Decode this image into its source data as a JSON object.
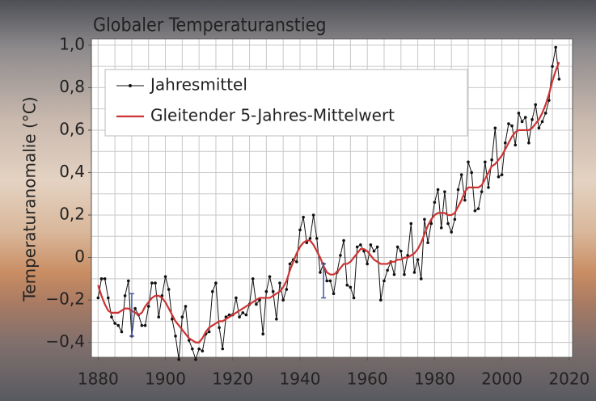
{
  "chart_data": {
    "type": "line",
    "title": "Globaler Temperaturanstieg",
    "ylabel": "Temperaturanomalie (°C)",
    "x": [
      1880,
      1881,
      1882,
      1883,
      1884,
      1885,
      1886,
      1887,
      1888,
      1889,
      1890,
      1891,
      1892,
      1893,
      1894,
      1895,
      1896,
      1897,
      1898,
      1899,
      1900,
      1901,
      1902,
      1903,
      1904,
      1905,
      1906,
      1907,
      1908,
      1909,
      1910,
      1911,
      1912,
      1913,
      1914,
      1915,
      1916,
      1917,
      1918,
      1919,
      1920,
      1921,
      1922,
      1923,
      1924,
      1925,
      1926,
      1927,
      1928,
      1929,
      1930,
      1931,
      1932,
      1933,
      1934,
      1935,
      1936,
      1937,
      1938,
      1939,
      1940,
      1941,
      1942,
      1943,
      1944,
      1945,
      1946,
      1947,
      1948,
      1949,
      1950,
      1951,
      1952,
      1953,
      1954,
      1955,
      1956,
      1957,
      1958,
      1959,
      1960,
      1961,
      1962,
      1963,
      1964,
      1965,
      1966,
      1967,
      1968,
      1969,
      1970,
      1971,
      1972,
      1973,
      1974,
      1975,
      1976,
      1977,
      1978,
      1979,
      1980,
      1981,
      1982,
      1983,
      1984,
      1985,
      1986,
      1987,
      1988,
      1989,
      1990,
      1991,
      1992,
      1993,
      1994,
      1995,
      1996,
      1997,
      1998,
      1999,
      2000,
      2001,
      2002,
      2003,
      2004,
      2005,
      2006,
      2007,
      2008,
      2009,
      2010,
      2011,
      2012,
      2013,
      2014,
      2015,
      2016,
      2017
    ],
    "series": [
      {
        "name": "Jahresmittel",
        "color": "#111111",
        "markers": true,
        "values": [
          -0.19,
          -0.1,
          -0.1,
          -0.19,
          -0.28,
          -0.31,
          -0.32,
          -0.35,
          -0.18,
          -0.11,
          -0.37,
          -0.24,
          -0.27,
          -0.32,
          -0.32,
          -0.23,
          -0.12,
          -0.12,
          -0.28,
          -0.18,
          -0.09,
          -0.15,
          -0.29,
          -0.37,
          -0.48,
          -0.28,
          -0.23,
          -0.39,
          -0.43,
          -0.48,
          -0.43,
          -0.44,
          -0.36,
          -0.35,
          -0.16,
          -0.12,
          -0.33,
          -0.43,
          -0.28,
          -0.27,
          -0.27,
          -0.19,
          -0.28,
          -0.26,
          -0.27,
          -0.22,
          -0.1,
          -0.22,
          -0.2,
          -0.36,
          -0.16,
          -0.09,
          -0.16,
          -0.29,
          -0.12,
          -0.2,
          -0.15,
          -0.03,
          -0.01,
          -0.02,
          0.13,
          0.19,
          0.07,
          0.09,
          0.2,
          0.09,
          -0.07,
          -0.03,
          -0.11,
          -0.11,
          -0.17,
          -0.07,
          0.01,
          0.08,
          -0.13,
          -0.14,
          -0.19,
          0.05,
          0.06,
          0.03,
          -0.03,
          0.06,
          0.03,
          0.05,
          -0.2,
          -0.11,
          -0.06,
          -0.02,
          -0.08,
          0.05,
          0.03,
          -0.08,
          0.01,
          0.16,
          -0.07,
          -0.01,
          -0.1,
          0.18,
          0.07,
          0.16,
          0.26,
          0.32,
          0.14,
          0.31,
          0.16,
          0.12,
          0.18,
          0.32,
          0.39,
          0.27,
          0.45,
          0.4,
          0.22,
          0.23,
          0.31,
          0.45,
          0.33,
          0.46,
          0.61,
          0.38,
          0.39,
          0.54,
          0.63,
          0.62,
          0.53,
          0.68,
          0.64,
          0.66,
          0.54,
          0.65,
          0.72,
          0.61,
          0.64,
          0.68,
          0.74,
          0.9,
          0.99,
          0.84
        ]
      },
      {
        "name": "Gleitender 5-Jahres-Mittelwert",
        "color": "#cc3333",
        "markers": false,
        "values": [
          -0.13,
          -0.18,
          -0.22,
          -0.25,
          -0.26,
          -0.26,
          -0.26,
          -0.25,
          -0.24,
          -0.24,
          -0.25,
          -0.26,
          -0.27,
          -0.26,
          -0.23,
          -0.21,
          -0.19,
          -0.18,
          -0.18,
          -0.19,
          -0.21,
          -0.24,
          -0.27,
          -0.3,
          -0.32,
          -0.34,
          -0.36,
          -0.38,
          -0.39,
          -0.4,
          -0.4,
          -0.38,
          -0.35,
          -0.33,
          -0.32,
          -0.31,
          -0.3,
          -0.3,
          -0.29,
          -0.28,
          -0.27,
          -0.26,
          -0.25,
          -0.24,
          -0.23,
          -0.22,
          -0.21,
          -0.2,
          -0.19,
          -0.19,
          -0.19,
          -0.19,
          -0.18,
          -0.17,
          -0.16,
          -0.14,
          -0.11,
          -0.06,
          -0.02,
          0.02,
          0.05,
          0.07,
          0.08,
          0.08,
          0.06,
          0.03,
          0.0,
          -0.04,
          -0.07,
          -0.08,
          -0.08,
          -0.07,
          -0.05,
          -0.03,
          -0.03,
          -0.02,
          0.0,
          0.02,
          0.04,
          0.04,
          0.03,
          0.01,
          -0.01,
          -0.02,
          -0.03,
          -0.03,
          -0.03,
          -0.02,
          -0.02,
          -0.01,
          -0.01,
          0.0,
          0.0,
          0.01,
          0.02,
          0.04,
          0.07,
          0.11,
          0.15,
          0.18,
          0.2,
          0.21,
          0.21,
          0.21,
          0.2,
          0.2,
          0.21,
          0.24,
          0.27,
          0.31,
          0.33,
          0.33,
          0.33,
          0.33,
          0.34,
          0.37,
          0.4,
          0.43,
          0.44,
          0.46,
          0.48,
          0.51,
          0.54,
          0.57,
          0.59,
          0.6,
          0.6,
          0.6,
          0.6,
          0.61,
          0.63,
          0.65,
          0.68,
          0.72,
          0.77,
          0.83,
          0.88,
          0.92
        ]
      }
    ],
    "error_bars": [
      {
        "x": 1890,
        "low": -0.37,
        "high": -0.17
      },
      {
        "x": 1947,
        "low": -0.19,
        "high": -0.03
      }
    ],
    "error_bar_color": "#4455aa",
    "xlim": [
      1878,
      2021
    ],
    "ylim": [
      -0.47,
      1.03
    ],
    "xticks": [
      1880,
      1900,
      1920,
      1940,
      1960,
      1980,
      2000,
      2020
    ],
    "yticks": [
      {
        "value": 1.0,
        "label": "1,0"
      },
      {
        "value": 0.8,
        "label": "0,8"
      },
      {
        "value": 0.6,
        "label": "0,6"
      },
      {
        "value": 0.4,
        "label": "0,4"
      },
      {
        "value": 0.2,
        "label": "0,2"
      },
      0,
      {
        "value": -0.2,
        "label": "−0,2"
      },
      {
        "value": -0.4,
        "label": "−0,4"
      }
    ],
    "x_gridlines": [
      1880,
      1885,
      1890,
      1895,
      1900,
      1905,
      1910,
      1915,
      1920,
      1925,
      1930,
      1935,
      1940,
      1945,
      1950,
      1955,
      1960,
      1965,
      1970,
      1975,
      1980,
      1985,
      1990,
      1995,
      2000,
      2005,
      2010,
      2015,
      2020
    ],
    "y_gridlines": [
      -0.4,
      -0.3,
      -0.2,
      -0.1,
      0,
      0.1,
      0.2,
      0.3,
      0.4,
      0.5,
      0.6,
      0.7,
      0.8,
      0.9,
      1.0
    ],
    "grid": true,
    "legend": "upper left"
  }
}
